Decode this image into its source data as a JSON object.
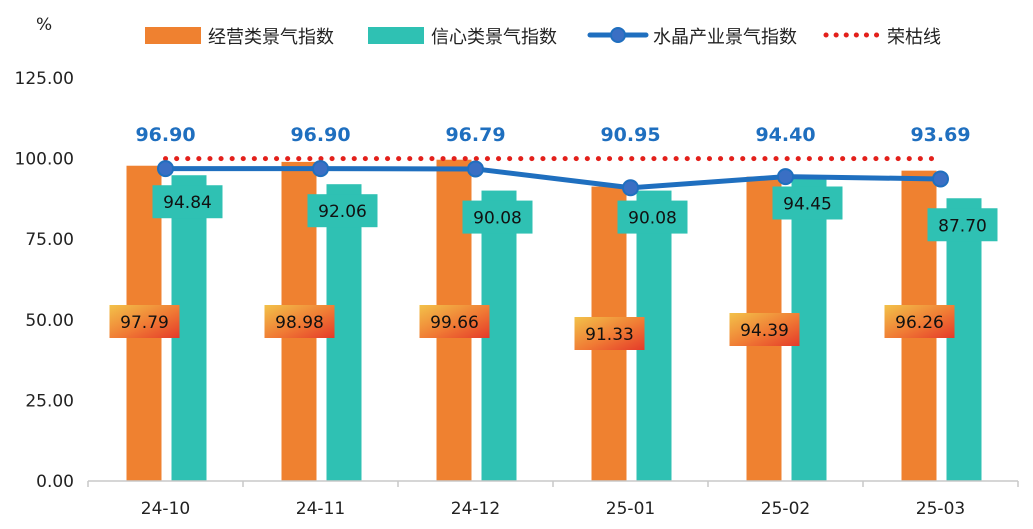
{
  "chart_data": {
    "type": "bar",
    "ylabel": "%",
    "ylim": [
      0,
      125
    ],
    "yticks": [
      "0.00",
      "25.00",
      "50.00",
      "75.00",
      "100.00",
      "125.00"
    ],
    "categories": [
      "24-10",
      "24-11",
      "24-12",
      "25-01",
      "25-02",
      "25-03"
    ],
    "series": [
      {
        "name": "经营类景气指数",
        "type": "bar",
        "color": "#ef8130",
        "values": [
          97.79,
          98.98,
          99.66,
          91.33,
          94.39,
          96.26
        ],
        "labels": [
          "97.79",
          "98.98",
          "99.66",
          "91.33",
          "94.39",
          "96.26"
        ]
      },
      {
        "name": "信心类景气指数",
        "type": "bar",
        "color": "#2fc1b3",
        "values": [
          94.84,
          92.06,
          90.08,
          90.08,
          94.45,
          87.7
        ],
        "labels": [
          "94.84",
          "92.06",
          "90.08",
          "90.08",
          "94.45",
          "87.70"
        ]
      },
      {
        "name": "水晶产业景气指数",
        "type": "line",
        "color": "#1f6fbf",
        "values": [
          96.9,
          96.9,
          96.79,
          90.95,
          94.4,
          93.69
        ],
        "labels": [
          "96.90",
          "96.90",
          "96.79",
          "90.95",
          "94.40",
          "93.69"
        ]
      },
      {
        "name": "荣枯线",
        "type": "line-dotted",
        "color": "#e3201b",
        "values": [
          100,
          100,
          100,
          100,
          100,
          100
        ]
      }
    ],
    "legend": "top",
    "grid": false
  }
}
